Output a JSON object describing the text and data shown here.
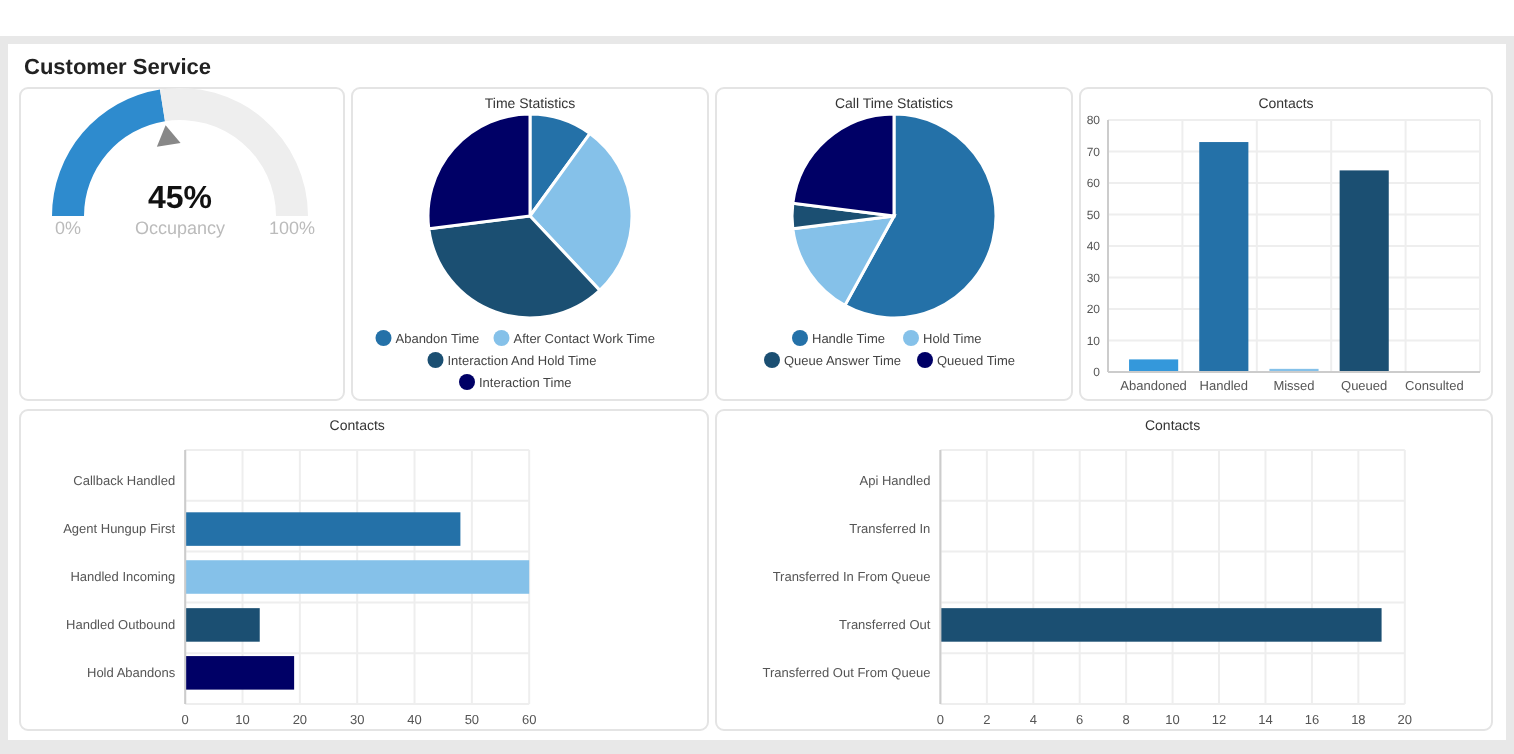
{
  "chart_data": [
    {
      "type": "donut",
      "title": "Customer Service",
      "categories": [
        "Occupancy",
        null
      ],
      "values": [
        45,
        55
      ],
      "colors": [
        "#2e8bce",
        "#eeeeee"
      ],
      "value_labels": [
        "45%",
        null
      ],
      "annotations": [
        "0%",
        "100%"
      ]
    },
    {
      "type": "pie",
      "title": "Time Statistics",
      "categories": [
        "Abandon Time",
        "After Contact Work Time",
        "Interaction And Hold Time",
        "Interaction Time"
      ],
      "values": [
        10,
        28,
        35,
        27
      ],
      "colors": [
        "#2471a8",
        "#85c1e9",
        "#1b4f72",
        "#000066"
      ],
      "legend": "bottom"
    },
    {
      "type": "pie",
      "title": "Call Time Statistics",
      "categories": [
        "Handle Time",
        "Hold Time",
        "Queue Answer Time",
        "Queued Time"
      ],
      "values": [
        58,
        15,
        4,
        23
      ],
      "colors": [
        "#2471a8",
        "#85c1e9",
        "#1b4f72",
        "#000066"
      ],
      "legend": "bottom"
    },
    {
      "type": "bar",
      "title": "Contacts",
      "categories": [
        "Abandoned",
        "Handled",
        "Missed",
        "Queued",
        "Consulted"
      ],
      "values": [
        4,
        73,
        1,
        64,
        0
      ],
      "colors": [
        "#3498db",
        "#2471a8",
        "#85c1e9",
        "#1b4f72",
        "#000066"
      ],
      "ylim": [
        0,
        80
      ],
      "yticks": [
        0,
        10,
        20,
        30,
        40,
        50,
        60,
        70,
        80
      ],
      "grid": true
    },
    {
      "type": "bar",
      "orientation": "horizontal",
      "title": "Contacts",
      "categories": [
        "Callback Handled",
        "Agent Hungup First",
        "Handled Incoming",
        "Handled Outbound",
        "Hold Abandons"
      ],
      "values": [
        0,
        48,
        60,
        13,
        19
      ],
      "colors": [
        "#3498db",
        "#2471a8",
        "#85c1e9",
        "#1b4f72",
        "#000066"
      ],
      "xlim": [
        0,
        60
      ],
      "xticks": [
        0,
        10,
        20,
        30,
        40,
        50,
        60
      ],
      "grid": true
    },
    {
      "type": "bar",
      "orientation": "horizontal",
      "title": "Contacts",
      "categories": [
        "Api Handled",
        "Transferred In",
        "Transferred In From Queue",
        "Transferred Out",
        "Transferred Out From Queue"
      ],
      "values": [
        0,
        0,
        0,
        19,
        0
      ],
      "colors": [
        "#3498db",
        "#2471a8",
        "#85c1e9",
        "#1b4f72",
        "#000066"
      ],
      "xlim": [
        0,
        20
      ],
      "xticks": [
        0,
        2,
        4,
        6,
        8,
        10,
        12,
        14,
        16,
        18,
        20
      ],
      "grid": true
    }
  ]
}
